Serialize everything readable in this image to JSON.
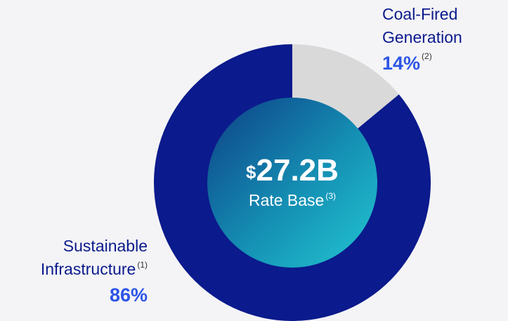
{
  "chart_data": {
    "type": "pie",
    "donut": true,
    "categories": [
      "Sustainable Infrastructure",
      "Coal-Fired Generation"
    ],
    "category_notes": [
      "(1)",
      "(2)"
    ],
    "values": [
      86,
      14
    ],
    "value_labels": [
      "86%",
      "14%"
    ],
    "colors": [
      "#0b1a8c",
      "#d9d9d9"
    ],
    "center_value": {
      "currency": "$",
      "amount": "27.2B"
    },
    "center_label": "Rate Base",
    "center_label_note": "(3)"
  }
}
